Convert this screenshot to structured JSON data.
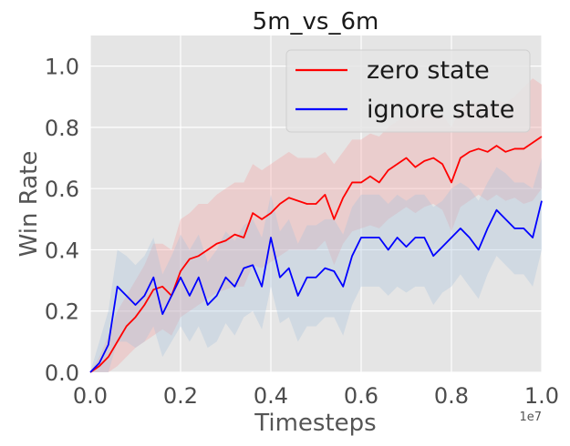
{
  "chart_data": {
    "type": "line",
    "title": "5m_vs_6m",
    "xlabel": "Timesteps",
    "ylabel": "Win Rate",
    "x_offset_label": "1e7",
    "xlim": [
      0,
      1.0
    ],
    "ylim": [
      0,
      1.1
    ],
    "xticks": [
      "0.0",
      "0.2",
      "0.4",
      "0.6",
      "0.8",
      "1.0"
    ],
    "yticks": [
      "0.0",
      "0.2",
      "0.4",
      "0.6",
      "0.8",
      "1.0"
    ],
    "grid": true,
    "legend_position": "top-right",
    "series": [
      {
        "name": "zero state",
        "color": "#ff0000",
        "band_color": "#f4a0a0",
        "x": [
          0.0,
          0.02,
          0.04,
          0.06,
          0.08,
          0.1,
          0.12,
          0.14,
          0.16,
          0.18,
          0.2,
          0.22,
          0.24,
          0.26,
          0.28,
          0.3,
          0.32,
          0.34,
          0.36,
          0.38,
          0.4,
          0.42,
          0.44,
          0.46,
          0.48,
          0.5,
          0.52,
          0.54,
          0.56,
          0.58,
          0.6,
          0.62,
          0.64,
          0.66,
          0.68,
          0.7,
          0.72,
          0.74,
          0.76,
          0.78,
          0.8,
          0.82,
          0.84,
          0.86,
          0.88,
          0.9,
          0.92,
          0.94,
          0.96,
          0.98,
          1.0
        ],
        "values": [
          0.0,
          0.02,
          0.05,
          0.1,
          0.15,
          0.18,
          0.22,
          0.27,
          0.28,
          0.25,
          0.33,
          0.37,
          0.38,
          0.4,
          0.42,
          0.43,
          0.45,
          0.44,
          0.52,
          0.5,
          0.52,
          0.55,
          0.57,
          0.56,
          0.55,
          0.55,
          0.58,
          0.5,
          0.57,
          0.62,
          0.62,
          0.64,
          0.62,
          0.66,
          0.68,
          0.7,
          0.67,
          0.69,
          0.7,
          0.68,
          0.62,
          0.7,
          0.72,
          0.73,
          0.72,
          0.74,
          0.72,
          0.73,
          0.73,
          0.75,
          0.77
        ],
        "band_upper": [
          0.0,
          0.05,
          0.12,
          0.2,
          0.25,
          0.3,
          0.35,
          0.42,
          0.42,
          0.4,
          0.5,
          0.52,
          0.55,
          0.55,
          0.58,
          0.6,
          0.62,
          0.62,
          0.68,
          0.66,
          0.68,
          0.7,
          0.72,
          0.7,
          0.7,
          0.7,
          0.72,
          0.68,
          0.72,
          0.76,
          0.76,
          0.78,
          0.77,
          0.8,
          0.82,
          0.84,
          0.82,
          0.84,
          0.85,
          0.84,
          0.8,
          0.86,
          0.88,
          0.88,
          0.87,
          0.89,
          0.88,
          0.9,
          0.93,
          0.96,
          0.94
        ],
        "band_lower": [
          0.0,
          0.0,
          0.0,
          0.02,
          0.05,
          0.08,
          0.1,
          0.12,
          0.14,
          0.12,
          0.18,
          0.2,
          0.22,
          0.24,
          0.26,
          0.27,
          0.28,
          0.28,
          0.35,
          0.34,
          0.36,
          0.38,
          0.4,
          0.4,
          0.4,
          0.4,
          0.43,
          0.35,
          0.42,
          0.46,
          0.47,
          0.48,
          0.47,
          0.5,
          0.52,
          0.54,
          0.52,
          0.54,
          0.55,
          0.53,
          0.46,
          0.54,
          0.56,
          0.58,
          0.56,
          0.58,
          0.56,
          0.57,
          0.55,
          0.56,
          0.6
        ]
      },
      {
        "name": "ignore state",
        "color": "#0000ff",
        "band_color": "#a8c4de",
        "x": [
          0.0,
          0.02,
          0.04,
          0.06,
          0.08,
          0.1,
          0.12,
          0.14,
          0.16,
          0.18,
          0.2,
          0.22,
          0.24,
          0.26,
          0.28,
          0.3,
          0.32,
          0.34,
          0.36,
          0.38,
          0.4,
          0.42,
          0.44,
          0.46,
          0.48,
          0.5,
          0.52,
          0.54,
          0.56,
          0.58,
          0.6,
          0.62,
          0.64,
          0.66,
          0.68,
          0.7,
          0.72,
          0.74,
          0.76,
          0.78,
          0.8,
          0.82,
          0.84,
          0.86,
          0.88,
          0.9,
          0.92,
          0.94,
          0.96,
          0.98,
          1.0
        ],
        "values": [
          0.0,
          0.03,
          0.09,
          0.28,
          0.25,
          0.22,
          0.25,
          0.31,
          0.19,
          0.25,
          0.31,
          0.25,
          0.31,
          0.22,
          0.25,
          0.31,
          0.28,
          0.34,
          0.35,
          0.28,
          0.44,
          0.31,
          0.34,
          0.25,
          0.31,
          0.31,
          0.34,
          0.33,
          0.28,
          0.38,
          0.44,
          0.44,
          0.44,
          0.4,
          0.44,
          0.41,
          0.44,
          0.44,
          0.38,
          0.41,
          0.44,
          0.47,
          0.44,
          0.4,
          0.47,
          0.53,
          0.5,
          0.47,
          0.47,
          0.44,
          0.56
        ],
        "band_upper": [
          0.0,
          0.1,
          0.2,
          0.4,
          0.38,
          0.35,
          0.38,
          0.44,
          0.32,
          0.38,
          0.45,
          0.4,
          0.45,
          0.36,
          0.4,
          0.46,
          0.43,
          0.48,
          0.5,
          0.44,
          0.58,
          0.46,
          0.5,
          0.42,
          0.48,
          0.48,
          0.5,
          0.5,
          0.45,
          0.54,
          0.58,
          0.58,
          0.58,
          0.55,
          0.58,
          0.56,
          0.58,
          0.58,
          0.54,
          0.56,
          0.6,
          0.62,
          0.6,
          0.56,
          0.62,
          0.67,
          0.65,
          0.62,
          0.62,
          0.6,
          0.7
        ],
        "band_lower": [
          0.0,
          0.0,
          0.0,
          0.1,
          0.1,
          0.08,
          0.1,
          0.15,
          0.05,
          0.1,
          0.15,
          0.1,
          0.15,
          0.08,
          0.1,
          0.16,
          0.12,
          0.18,
          0.2,
          0.14,
          0.28,
          0.16,
          0.18,
          0.1,
          0.15,
          0.15,
          0.18,
          0.18,
          0.12,
          0.22,
          0.28,
          0.28,
          0.28,
          0.25,
          0.28,
          0.26,
          0.28,
          0.28,
          0.22,
          0.26,
          0.28,
          0.32,
          0.28,
          0.24,
          0.32,
          0.38,
          0.35,
          0.32,
          0.32,
          0.28,
          0.4
        ]
      }
    ]
  }
}
